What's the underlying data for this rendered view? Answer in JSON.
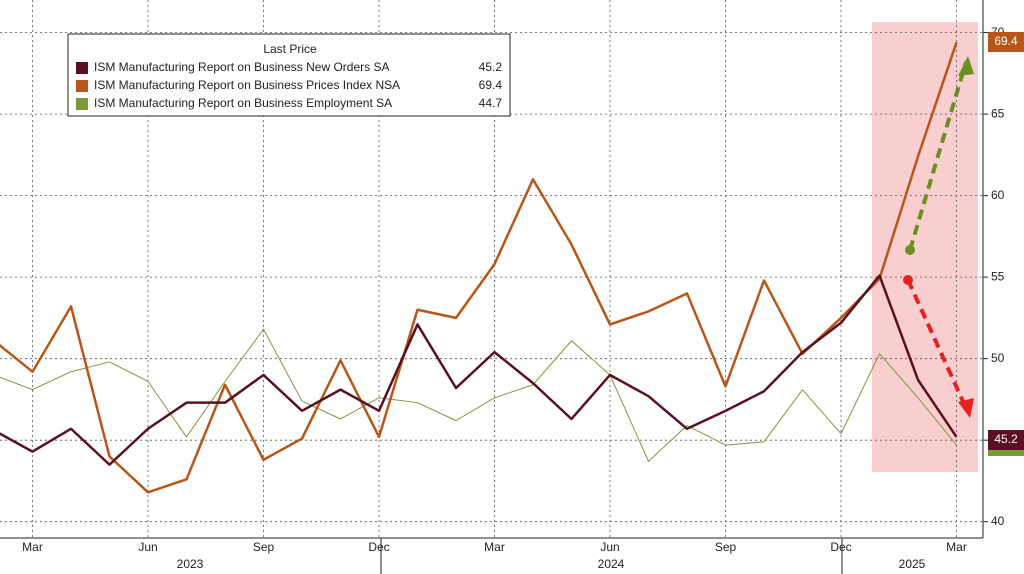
{
  "chart_data": {
    "type": "line",
    "legend_title": "Last Price",
    "categories": [
      null,
      "Mar",
      null,
      null,
      "Jun",
      null,
      null,
      "Sep",
      null,
      null,
      "Dec",
      null,
      null,
      "Mar",
      null,
      null,
      "Jun",
      null,
      null,
      "Sep",
      null,
      null,
      "Dec",
      null,
      null,
      "Mar"
    ],
    "years": [
      "2023",
      "2024",
      "2025"
    ],
    "series": [
      {
        "name": "ISM Manufacturing Report on Business New Orders SA",
        "color": "#5a1020",
        "width": 2.5,
        "values": [
          45.6,
          44.3,
          45.7,
          43.5,
          45.7,
          47.3,
          47.3,
          49.0,
          46.8,
          48.1,
          46.8,
          52.1,
          48.2,
          50.4,
          48.5,
          46.3,
          49.0,
          47.7,
          45.7,
          46.8,
          48.0,
          50.4,
          52.2,
          55.1,
          48.7,
          45.2
        ]
      },
      {
        "name": "ISM Manufacturing Report on Business Prices Index NSA",
        "color": "#b8561a",
        "width": 2.5,
        "values": [
          51.1,
          49.2,
          53.2,
          44.0,
          41.8,
          42.6,
          48.4,
          43.8,
          45.1,
          49.9,
          45.2,
          53.0,
          52.5,
          55.8,
          61.0,
          57.0,
          52.1,
          52.9,
          54.0,
          48.3,
          54.8,
          50.3,
          52.5,
          54.9,
          62.4,
          69.4
        ]
      },
      {
        "name": "ISM Manufacturing Report on Business Employment SA",
        "color": "#7a9a3a",
        "width": 1,
        "values": [
          49.0,
          48.1,
          49.2,
          49.8,
          48.6,
          45.2,
          48.6,
          51.8,
          47.4,
          46.3,
          47.6,
          47.3,
          46.2,
          47.6,
          48.4,
          51.1,
          49.0,
          43.7,
          45.9,
          44.7,
          44.9,
          48.1,
          45.4,
          50.3,
          47.6,
          44.7
        ]
      }
    ],
    "ylim": [
      39,
      72
    ],
    "yticks": [
      40,
      45,
      50,
      55,
      60,
      65,
      70
    ],
    "grid": true
  }
}
